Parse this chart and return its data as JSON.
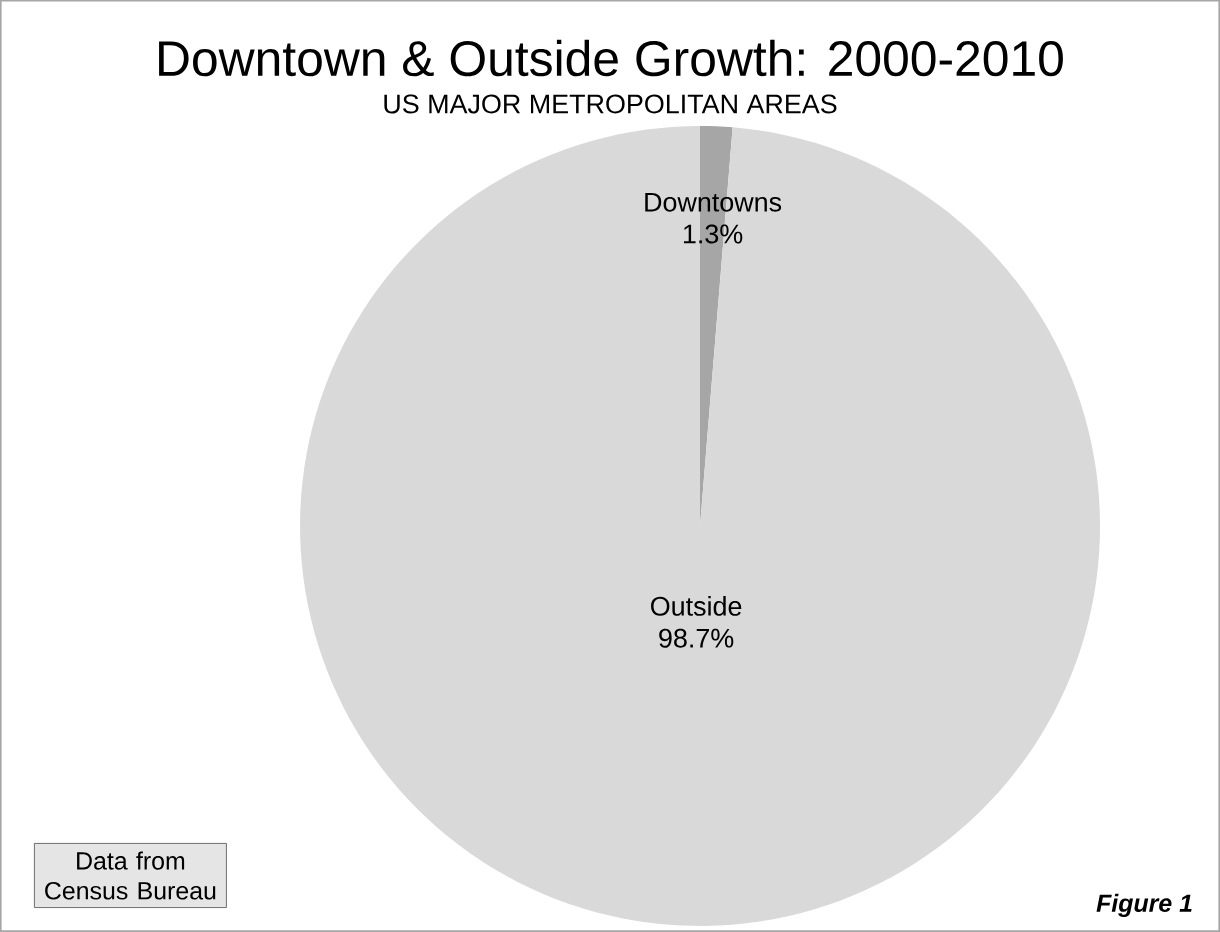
{
  "chart_data": {
    "type": "pie",
    "title": "Downtown & Outside Growth: 2000-2010",
    "subtitle": "US MAJOR METROPOLITAN AREAS",
    "categories": [
      "Downtowns",
      "Outside"
    ],
    "values": [
      1.3,
      98.7
    ],
    "colors": [
      "#a6a6a6",
      "#d9d9d9"
    ],
    "value_labels": [
      "1.3%",
      "98.7%"
    ],
    "annotations": [
      "Data from Census Bureau",
      "Figure 1"
    ]
  }
}
